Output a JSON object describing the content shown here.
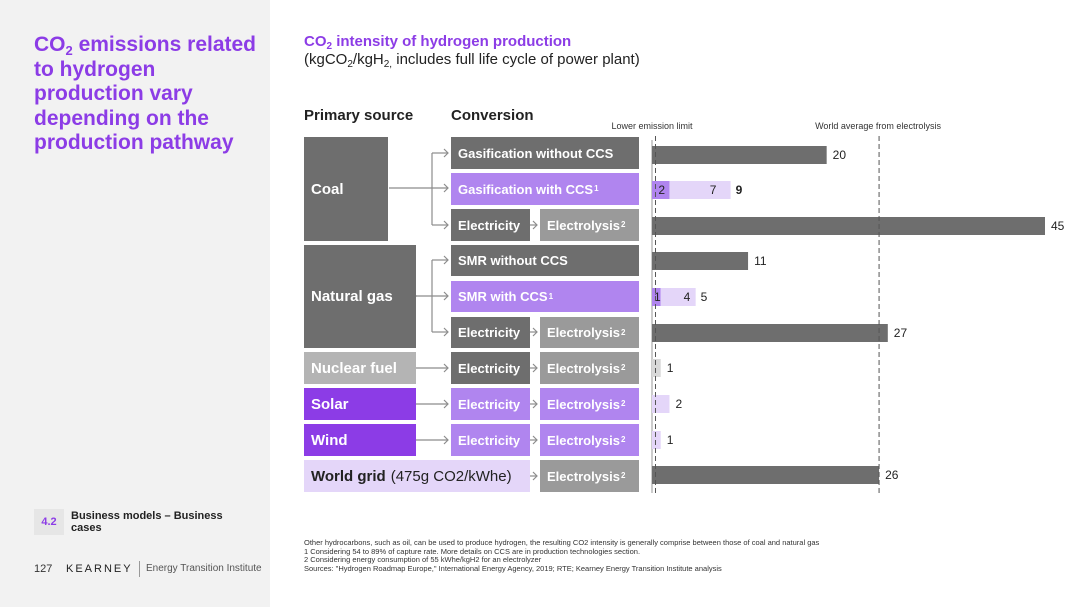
{
  "headline": {
    "line1_pre": "CO",
    "line1_sub": "2",
    "line1_post": " emissions",
    "rest": "related to hydrogen production vary depending on the production pathway"
  },
  "footer": {
    "section_number": "4.2",
    "section_label": "Business models – Business cases",
    "page_number": "127",
    "brand": "KEARNEY",
    "brand_sub": "Energy Transition Institute"
  },
  "chart_header": {
    "title_pre": "CO",
    "title_sub": "2",
    "title_post": " intensity of hydrogen production",
    "subtitle_pre": "(kgCO",
    "subtitle_sub1": "2",
    "subtitle_mid": "/kgH",
    "subtitle_sub2": "2,",
    "subtitle_post": " includes full life cycle of power plant)",
    "col_primary": "Primary source",
    "col_conversion": "Conversion"
  },
  "sources": {
    "coal": "Coal",
    "natural_gas": "Natural gas",
    "nuclear": "Nuclear fuel",
    "solar": "Solar",
    "wind": "Wind",
    "world_grid": "World grid",
    "world_grid_note": "(475g CO2/kWhe)"
  },
  "conversions": {
    "gas_no_ccs": "Gasification without CCS",
    "gas_ccs": "Gasification with CCS",
    "gas_ccs_sup": "1",
    "smr_no_ccs": "SMR without CCS",
    "smr_ccs": "SMR with CCS",
    "smr_ccs_sup": "1",
    "electricity": "Electricity",
    "electrolysis": "Electrolysis",
    "electrolysis_sup": "2"
  },
  "colors": {
    "dark_grey": "#6e6e6e",
    "light_purple": "#e4d6f9",
    "purple": "#8c3ce6"
  },
  "chart_data": {
    "type": "bar",
    "orientation": "horizontal",
    "xlim": [
      0,
      45
    ],
    "categories": [
      "Coal – Gasification without CCS",
      "Coal – Gasification with CCS",
      "Coal – Electricity – Electrolysis",
      "Natural gas – SMR without CCS",
      "Natural gas – SMR with CCS",
      "Natural gas – Electricity – Electrolysis",
      "Nuclear fuel – Electricity – Electrolysis",
      "Solar – Electricity – Electrolysis",
      "Wind – Electricity – Electrolysis",
      "World grid – Electrolysis"
    ],
    "values": [
      20,
      9,
      45,
      11,
      5,
      27,
      1,
      2,
      1,
      26
    ],
    "labels": [
      "20",
      "9",
      "45",
      "11",
      "5",
      "27",
      "1",
      "2",
      "1",
      "26"
    ],
    "ranges": [
      {
        "row": 1,
        "min": 2,
        "mid": 7,
        "max": 9,
        "min_label": "2",
        "mid_label": "7",
        "max_label": "9"
      },
      {
        "row": 4,
        "min": 1,
        "mid": 4,
        "max": 5,
        "min_label": "1",
        "mid_label": "4",
        "max_label": "5"
      }
    ],
    "reference_lines": [
      {
        "name": "Lower emission limit",
        "value": 0.4
      },
      {
        "name": "World average from electrolysis",
        "value": 26
      }
    ]
  },
  "footnotes": [
    "Other hydrocarbons, such as oil, can be used to produce hydrogen, the resulting CO2 intensity is generally comprise between those of coal and natural gas",
    "1 Considering 54 to 89% of capture rate. More details on CCS are in production technologies section.",
    "2 Considering energy consumption of 55 kWhe/kgH2 for an electrolyzer",
    "Sources: \"Hydrogen Roadmap Europe,\" International Energy Agency, 2019; RTE; Kearney Energy Transition Institute analysis"
  ]
}
